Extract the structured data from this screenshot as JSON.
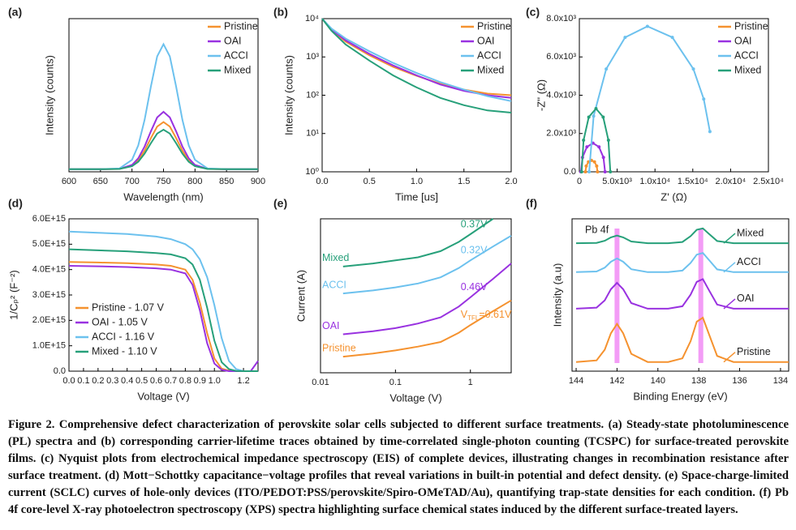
{
  "chart_data": [
    {
      "type": "line",
      "panel_label": "(a)",
      "x_label": "Wavelength (nm)",
      "y_label": "Intensity (counts)",
      "x": [
        600,
        650,
        680,
        700,
        710,
        720,
        730,
        740,
        750,
        760,
        770,
        780,
        790,
        800,
        820,
        850,
        900
      ],
      "xlim": [
        600,
        900
      ],
      "ylim": [
        0,
        1.2
      ],
      "xticks": [
        600,
        650,
        700,
        750,
        800,
        850,
        900
      ],
      "legend": "upper right",
      "series": [
        {
          "name": "Pristine",
          "color": "#f5922f",
          "values": [
            0.02,
            0.02,
            0.022,
            0.048,
            0.091,
            0.166,
            0.265,
            0.354,
            0.39,
            0.354,
            0.265,
            0.166,
            0.091,
            0.048,
            0.022,
            0.02,
            0.02
          ]
        },
        {
          "name": "OAI",
          "color": "#9932e0",
          "values": [
            0.02,
            0.02,
            0.023,
            0.054,
            0.106,
            0.198,
            0.318,
            0.426,
            0.47,
            0.426,
            0.318,
            0.198,
            0.106,
            0.054,
            0.023,
            0.02,
            0.02
          ]
        },
        {
          "name": "ACCI",
          "color": "#6cc1ee",
          "values": [
            0.02,
            0.02,
            0.026,
            0.094,
            0.207,
            0.407,
            0.669,
            0.904,
            1.0,
            0.904,
            0.669,
            0.407,
            0.207,
            0.094,
            0.026,
            0.02,
            0.02
          ]
        },
        {
          "name": "Mixed",
          "color": "#27a07a",
          "values": [
            0.02,
            0.02,
            0.022,
            0.044,
            0.079,
            0.142,
            0.225,
            0.3,
            0.33,
            0.3,
            0.225,
            0.142,
            0.079,
            0.044,
            0.022,
            0.02,
            0.02
          ]
        }
      ]
    },
    {
      "type": "line",
      "panel_label": "(b)",
      "x_label": "Time [us]",
      "y_label": "Intensity (counts)",
      "x": [
        0,
        0.1,
        0.25,
        0.5,
        0.75,
        1.0,
        1.25,
        1.5,
        1.75,
        2.0
      ],
      "xlim": [
        0,
        2
      ],
      "ylim": [
        1,
        10000
      ],
      "yscale": "log",
      "xticks": [
        {
          "value": 0,
          "label": "0.0"
        },
        0.5,
        {
          "value": 1,
          "label": "1.0"
        },
        1.5,
        {
          "value": 2,
          "label": "2.0"
        }
      ],
      "yticks": [
        {
          "value": 1,
          "label": "10⁰"
        },
        {
          "value": 10,
          "label": "10¹"
        },
        {
          "value": 100,
          "label": "10²"
        },
        {
          "value": 1000,
          "label": "10³"
        },
        {
          "value": 10000,
          "label": "10⁴"
        }
      ],
      "legend": "upper right",
      "series": [
        {
          "name": "Pristine",
          "color": "#f5922f",
          "values": [
            10000,
            5000,
            2500,
            1100,
            550,
            320,
            200,
            140,
            110,
            100
          ]
        },
        {
          "name": "OAI",
          "color": "#9932e0",
          "values": [
            10000,
            5200,
            2700,
            1200,
            600,
            330,
            190,
            130,
            100,
            85
          ]
        },
        {
          "name": "ACCI",
          "color": "#6cc1ee",
          "values": [
            10000,
            5500,
            3000,
            1400,
            700,
            380,
            220,
            140,
            95,
            70
          ]
        },
        {
          "name": "Mixed",
          "color": "#27a07a",
          "values": [
            10000,
            4800,
            2100,
            800,
            330,
            160,
            85,
            55,
            40,
            35
          ]
        }
      ]
    },
    {
      "type": "line",
      "panel_label": "(c)",
      "x_label": "Z' (Ω)",
      "y_label": "-Z'' (Ω)",
      "markers": true,
      "xlim": [
        0,
        25000
      ],
      "ylim": [
        0,
        8000
      ],
      "xticks": [
        0,
        {
          "value": 5000,
          "label": "5.0x10³"
        },
        {
          "value": 10000,
          "label": "1.0x10⁴"
        },
        {
          "value": 15000,
          "label": "1.5x10⁴"
        },
        {
          "value": 20000,
          "label": "2.0x10⁴"
        },
        {
          "value": 25000,
          "label": "2.5x10⁴"
        }
      ],
      "yticks": [
        {
          "value": 0,
          "label": "0.0"
        },
        {
          "value": 2000,
          "label": "2.0x10³"
        },
        {
          "value": 4000,
          "label": "4.0x10³"
        },
        {
          "value": 6000,
          "label": "6.0x10³"
        },
        {
          "value": 8000,
          "label": "8.0x10³"
        }
      ],
      "legend": "upper right",
      "series": [
        {
          "name": "Pristine",
          "color": "#f5922f",
          "x": [
            800,
            907,
            1200,
            1600,
            2000,
            2293,
            2400
          ],
          "values": [
            0,
            300,
            520,
            600,
            520,
            300,
            0
          ]
        },
        {
          "name": "OAI",
          "color": "#9932e0",
          "x": [
            200,
            414,
            1000,
            1800,
            2600,
            3186,
            3400
          ],
          "values": [
            0,
            750,
            1299,
            1500,
            1299,
            750,
            0
          ]
        },
        {
          "name": "ACCI",
          "color": "#6cc1ee",
          "x": [
            1300,
            1885,
            3556,
            6051,
            9000,
            12294,
            15080,
            16448,
            17265
          ],
          "values": [
            0,
            2911,
            5373,
            7022,
            7600,
            7022,
            5373,
            3800,
            2098
          ]
        },
        {
          "name": "Mixed",
          "color": "#27a07a",
          "x": [
            300,
            555,
            1250,
            2200,
            3150,
            3845,
            4100
          ],
          "values": [
            0,
            1650,
            2858,
            3300,
            2858,
            1650,
            0
          ]
        }
      ]
    },
    {
      "type": "line",
      "panel_label": "(d)",
      "x_label": "Voltage (V)",
      "y_label": "1/Cₚ² (F⁻²)",
      "x": [
        0,
        0.2,
        0.4,
        0.6,
        0.7,
        0.8,
        0.85,
        0.9,
        0.95,
        1.0,
        1.05,
        1.1,
        1.15,
        1.2,
        1.25,
        1.3
      ],
      "xlim": [
        0,
        1.3
      ],
      "ylim": [
        0,
        6000000000000000.0
      ],
      "xticks": [
        {
          "value": 0,
          "label": "0.0"
        },
        0.1,
        0.2,
        0.3,
        0.4,
        0.5,
        0.6,
        0.7,
        0.8,
        0.9,
        {
          "value": 1,
          "label": "1.0"
        },
        1.2
      ],
      "yticks": [
        {
          "value": 0,
          "label": "0.0"
        },
        {
          "value": 1000000000000000.0,
          "label": "1.0E+15"
        },
        {
          "value": 2000000000000000.0,
          "label": "2.0E+15"
        },
        {
          "value": 3000000000000000.0,
          "label": "3.0E+15"
        },
        {
          "value": 4000000000000000.0,
          "label": "4.0E+15"
        },
        {
          "value": 5000000000000000.0,
          "label": "5.0E+15"
        },
        {
          "value": 6000000000000000.0,
          "label": "6.0E+15"
        }
      ],
      "legend": "lower left",
      "series": [
        {
          "name": "Pristine - 1.07 V",
          "color": "#f5922f",
          "values": [
            4300000000000000.0,
            4280000000000000.0,
            4250000000000000.0,
            4200000000000000.0,
            4150000000000000.0,
            4000000000000000.0,
            3600000000000000.0,
            2700000000000000.0,
            1500000000000000.0,
            500000000000000.0,
            100000000000000.0,
            20000000000000.0,
            0,
            0,
            0,
            0
          ]
        },
        {
          "name": "OAI - 1.05 V",
          "color": "#9932e0",
          "values": [
            4150000000000000.0,
            4130000000000000.0,
            4100000000000000.0,
            4050000000000000.0,
            4000000000000000.0,
            3850000000000000.0,
            3400000000000000.0,
            2400000000000000.0,
            1100000000000000.0,
            300000000000000.0,
            50000000000000.0,
            0,
            0,
            0,
            0,
            400000000000000.0
          ]
        },
        {
          "name": "ACCI - 1.16 V",
          "color": "#6cc1ee",
          "values": [
            5500000000000000.0,
            5450000000000000.0,
            5400000000000000.0,
            5300000000000000.0,
            5200000000000000.0,
            5000000000000000.0,
            4800000000000000.0,
            4400000000000000.0,
            3700000000000000.0,
            2600000000000000.0,
            1300000000000000.0,
            400000000000000.0,
            80000000000000.0,
            0,
            0,
            0
          ]
        },
        {
          "name": "Mixed - 1.10 V",
          "color": "#27a07a",
          "values": [
            4800000000000000.0,
            4760000000000000.0,
            4720000000000000.0,
            4650000000000000.0,
            4600000000000000.0,
            4450000000000000.0,
            4200000000000000.0,
            3600000000000000.0,
            2500000000000000.0,
            1200000000000000.0,
            350000000000000.0,
            80000000000000.0,
            10000000000000.0,
            0,
            0,
            0
          ]
        }
      ]
    },
    {
      "type": "line",
      "panel_label": "(e)",
      "x_label": "Voltage (V)",
      "y_label": "Current (A)",
      "x": [
        0.02,
        0.05,
        0.1,
        0.2,
        0.4,
        0.7,
        1.0,
        2.0,
        3.5
      ],
      "xlim": [
        0.01,
        3.5
      ],
      "xscale": "log",
      "ylim": [
        0,
        10
      ],
      "xticks": [
        0.01,
        0.1,
        1
      ],
      "legend": "inline left",
      "annotations": [
        "0.37V",
        "0.32V",
        "0.46V",
        [
          "V",
          "TFL",
          "=0.61V"
        ]
      ],
      "series": [
        {
          "name": "Mixed",
          "color": "#27a07a",
          "values": [
            6.9,
            7.1,
            7.3,
            7.5,
            7.9,
            8.5,
            9.0,
            10,
            null
          ]
        },
        {
          "name": "ACCI",
          "color": "#6cc1ee",
          "values": [
            5.15,
            5.35,
            5.55,
            5.8,
            6.2,
            6.8,
            7.3,
            8.2,
            8.9
          ]
        },
        {
          "name": "OAI",
          "color": "#9932e0",
          "values": [
            2.5,
            2.7,
            2.9,
            3.2,
            3.6,
            4.3,
            4.9,
            6.1,
            7.1
          ]
        },
        {
          "name": "Pristine",
          "color": "#f5922f",
          "values": [
            1.05,
            1.25,
            1.45,
            1.7,
            2.0,
            2.6,
            3.1,
            4.0,
            4.7
          ]
        }
      ]
    },
    {
      "type": "line",
      "panel_label": "(f)",
      "x_label": "Binding Energy (eV)",
      "y_label": "Intensity (a.u)",
      "x": [
        144,
        143,
        142.6,
        142.3,
        142,
        141.7,
        141.3,
        140.5,
        139.5,
        138.8,
        138.4,
        138.1,
        137.8,
        137.5,
        137.1,
        136.3,
        135,
        133.6
      ],
      "xlim": [
        144.2,
        133.6
      ],
      "ylim": [
        0,
        10
      ],
      "xticks": [
        144,
        142,
        140,
        138,
        136,
        134
      ],
      "legend": "inline right",
      "text_label": "Pb 4f",
      "reference_lines": [
        142.0,
        137.9
      ],
      "reference_color": "#f39cf6",
      "series": [
        {
          "name": "Mixed",
          "color": "#27a07a",
          "values": [
            8.4,
            8.42,
            8.56,
            8.78,
            8.9,
            8.78,
            8.51,
            8.4,
            8.4,
            8.48,
            8.86,
            9.28,
            9.37,
            9.01,
            8.54,
            8.4,
            8.4,
            8.4
          ]
        },
        {
          "name": "ACCI",
          "color": "#6cc1ee",
          "values": [
            6.5,
            6.54,
            6.79,
            7.18,
            7.4,
            7.18,
            6.69,
            6.5,
            6.5,
            6.6,
            7.1,
            7.65,
            7.76,
            7.29,
            6.68,
            6.5,
            6.5,
            6.5
          ]
        },
        {
          "name": "OAI",
          "color": "#9932e0",
          "values": [
            4.1,
            4.17,
            4.65,
            5.38,
            5.8,
            5.38,
            4.47,
            4.1,
            4.1,
            4.26,
            5.02,
            5.86,
            6.04,
            5.31,
            4.37,
            4.1,
            4.1,
            4.1
          ]
        },
        {
          "name": "Pristine",
          "color": "#f5922f",
          "values": [
            0.6,
            0.71,
            1.41,
            2.49,
            3.1,
            2.49,
            1.14,
            0.6,
            0.6,
            0.84,
            1.97,
            3.25,
            3.51,
            2.42,
            1.0,
            0.6,
            0.6,
            0.6
          ]
        }
      ]
    }
  ],
  "caption": {
    "label": "Figure 2.",
    "text": "Comprehensive defect characterization of perovskite solar cells subjected to different surface treatments. (a) Steady-state photoluminescence (PL) spectra and (b) corresponding carrier-lifetime traces obtained by time-correlated single-photon counting (TCSPC) for surface-treated perovskite films. (c) Nyquist plots from electrochemical impedance spectroscopy (EIS) of complete devices, illustrating changes in recombination resistance after surface treatment. (d) Mott−Schottky capacitance−voltage profiles that reveal variations in built-in potential and defect density. (e) Space-charge-limited current (SCLC) curves of hole-only devices (ITO/PEDOT:PSS/perovskite/Spiro-OMeTAD/Au), quantifying trap-state densities for each condition. (f) Pb 4f core-level X-ray photoelectron spectroscopy (XPS) spectra highlighting surface chemical states induced by the different surface-treated layers."
  }
}
